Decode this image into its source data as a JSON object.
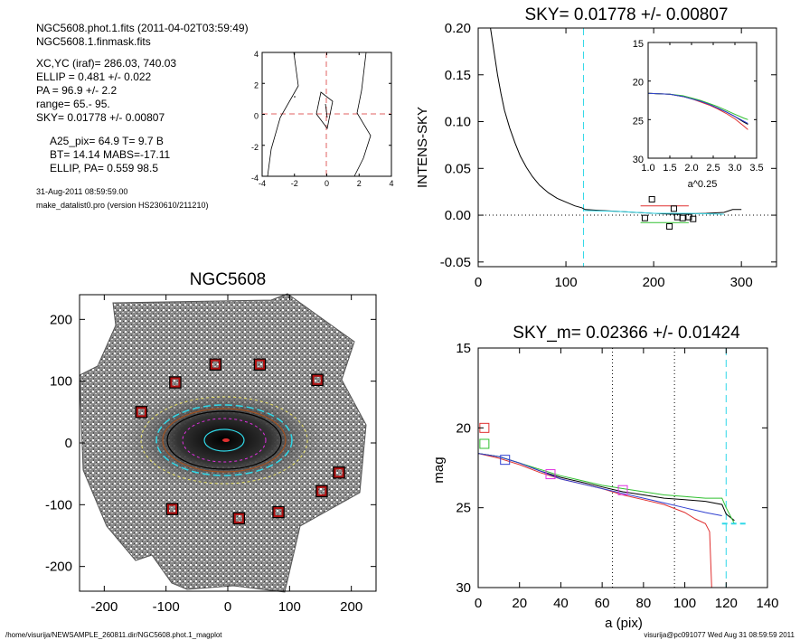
{
  "info": {
    "lines_a": [
      "NGC5608.phot.1.fits  (2011-04-02T03:59:49)",
      "NGC5608.1.finmask.fits"
    ],
    "lines_b": [
      "XC,YC (iraf)=   286.03, 740.03",
      "ELLIP = 0.481 +/- 0.022",
      "PA    =  96.9 +/-   2.2",
      "range=   65.-   95.",
      "SKY= 0.01778 +/- 0.00807"
    ],
    "lines_c": [
      "A25_pix= 64.9   T= 9.7  B",
      "BT=  14.14   MABS=-17.11",
      "ELLIP, PA= 0.559    98.5"
    ],
    "lines_d": [
      "31-Aug-2011 08:59:59.00",
      "make_datalist0.pro (version HS230610/211210)"
    ]
  },
  "footer": {
    "left": "/home/visurija/NEWSAMPLE_260811.dir/NGC5608.phot.1_magplot",
    "right": "visurija@pc091077  Wed Aug 31 08:59:59 2011"
  },
  "colors": {
    "red": "#e03030",
    "green": "#30c030",
    "blue": "#3040d0",
    "cyan": "#30d8e8",
    "magenta": "#e030e0",
    "yellow": "#e8e040",
    "brown": "#a05020"
  },
  "chart_data": [
    {
      "type": "line",
      "panel": "center-inset",
      "title": "",
      "xlabel": "",
      "ylabel": "",
      "xlim": [
        -4,
        4
      ],
      "ylim": [
        -4,
        4
      ],
      "xticks": [
        "-4",
        "-2",
        "0",
        "2",
        "4"
      ],
      "yticks": [
        "4",
        "2",
        "0",
        "-2",
        "-4"
      ],
      "guides": {
        "x": 0,
        "y": 0,
        "color": "red",
        "style": "dashed"
      }
    },
    {
      "type": "image",
      "panel": "galaxy-image",
      "title": "NGC5608",
      "xlim": [
        -240,
        240
      ],
      "ylim": [
        -240,
        240
      ],
      "xticks": [
        "-200",
        "-100",
        "0",
        "100",
        "200"
      ],
      "yticks": [
        "200",
        "100",
        "0",
        "-100",
        "-200"
      ],
      "star_boxes": [
        [
          -140,
          50
        ],
        [
          -85,
          98
        ],
        [
          -20,
          127
        ],
        [
          52,
          127
        ],
        [
          145,
          102
        ],
        [
          180,
          -48
        ],
        [
          152,
          -78
        ],
        [
          82,
          -112
        ],
        [
          18,
          -122
        ],
        [
          -90,
          -107
        ]
      ]
    },
    {
      "type": "line",
      "panel": "sky-profile",
      "title": "SKY= 0.01778 +/- 0.00807",
      "xlabel": "",
      "ylabel": "INTENS-SKY",
      "xlim": [
        0,
        340
      ],
      "ylim": [
        -0.055,
        0.2
      ],
      "xticks": [
        "0",
        "100",
        "200",
        "300"
      ],
      "yticks": [
        "0.20",
        "0.15",
        "0.10",
        "0.05",
        "0.00",
        "-0.05"
      ],
      "vline": 120,
      "series": [
        {
          "color": "black",
          "x": [
            14,
            18,
            22,
            26,
            30,
            36,
            42,
            48,
            55,
            62,
            70,
            80,
            90,
            100,
            110,
            118,
            122,
            140,
            160,
            180,
            200,
            220,
            240,
            260,
            280,
            290,
            300
          ],
          "y": [
            0.2,
            0.175,
            0.15,
            0.13,
            0.112,
            0.093,
            0.077,
            0.063,
            0.051,
            0.041,
            0.032,
            0.024,
            0.018,
            0.014,
            0.01,
            0.008,
            0.006,
            0.005,
            0.004,
            0.003,
            0.002,
            0.001,
            0.0015,
            0.002,
            0.003,
            0.006,
            0.006
          ]
        },
        {
          "color": "cyan",
          "x": [
            120,
            160,
            200,
            240,
            280
          ],
          "y": [
            0.005,
            0.004,
            0.002,
            0.002,
            0.001
          ]
        },
        {
          "color": "green",
          "x": [
            185,
            200,
            220,
            240
          ],
          "y": [
            -0.008,
            -0.008,
            -0.008,
            -0.008
          ]
        },
        {
          "color": "red",
          "x": [
            185,
            200,
            220,
            240
          ],
          "y": [
            0.01,
            0.01,
            0.01,
            0.01
          ]
        }
      ],
      "points": [
        [
          198,
          0.017
        ],
        [
          223,
          0.007
        ],
        [
          218,
          -0.012
        ],
        [
          190,
          -0.003
        ],
        [
          227,
          -0.002
        ],
        [
          233,
          -0.003
        ],
        [
          240,
          -0.002
        ],
        [
          245,
          -0.004
        ]
      ]
    },
    {
      "type": "line",
      "panel": "sky-profile-inset",
      "title": "",
      "xlabel": "a^0.25",
      "ylabel": "",
      "xlim": [
        1.0,
        3.5
      ],
      "ylim": [
        15,
        30
      ],
      "xticks": [
        "1.0",
        "1.5",
        "2.0",
        "2.5",
        "3.0",
        "3.5"
      ],
      "yticks": [
        "15",
        "20",
        "25",
        "30"
      ],
      "series": [
        {
          "color": "black",
          "x": [
            1.0,
            1.5,
            1.8,
            2.0,
            2.2,
            2.4,
            2.6,
            2.8,
            3.0,
            3.2,
            3.3
          ],
          "y": [
            21.6,
            21.7,
            22.0,
            22.3,
            22.6,
            23.0,
            23.5,
            24.0,
            24.6,
            25.3,
            25.6
          ]
        },
        {
          "color": "red",
          "x": [
            1.0,
            1.5,
            1.8,
            2.0,
            2.2,
            2.4,
            2.6,
            2.8,
            3.0,
            3.2,
            3.3
          ],
          "y": [
            21.6,
            21.7,
            22.0,
            22.3,
            22.7,
            23.1,
            23.6,
            24.2,
            24.9,
            25.8,
            26.3
          ]
        },
        {
          "color": "green",
          "x": [
            1.0,
            1.5,
            1.8,
            2.0,
            2.2,
            2.4,
            2.6,
            2.8,
            3.0,
            3.2,
            3.3
          ],
          "y": [
            21.6,
            21.7,
            21.9,
            22.2,
            22.5,
            22.9,
            23.3,
            23.8,
            24.3,
            24.8,
            25.0
          ]
        },
        {
          "color": "blue",
          "x": [
            1.0,
            1.5,
            1.8,
            2.0,
            2.2,
            2.4,
            2.6,
            2.8,
            3.0,
            3.2,
            3.3
          ],
          "y": [
            21.6,
            21.7,
            22.0,
            22.3,
            22.6,
            23.0,
            23.5,
            24.0,
            24.6,
            25.2,
            25.5
          ]
        }
      ]
    },
    {
      "type": "line",
      "panel": "mag-profile",
      "title": "SKY_m=  0.02366 +/- 0.01424",
      "xlabel": "a (pix)",
      "ylabel": "mag",
      "xlim": [
        0,
        140
      ],
      "ylim": [
        15,
        30
      ],
      "xticks": [
        "0",
        "20",
        "40",
        "60",
        "80",
        "100",
        "120",
        "140"
      ],
      "yticks": [
        "15",
        "20",
        "25",
        "30"
      ],
      "vlines_dotted": [
        65,
        95
      ],
      "vline_cyan": 120,
      "series": [
        {
          "color": "black",
          "x": [
            0,
            10,
            20,
            30,
            40,
            50,
            60,
            70,
            80,
            90,
            100,
            110,
            118,
            120,
            124
          ],
          "y": [
            21.6,
            21.8,
            22.2,
            22.7,
            23.1,
            23.4,
            23.7,
            24.0,
            24.2,
            24.4,
            24.5,
            24.6,
            24.8,
            25.4,
            25.8
          ]
        },
        {
          "color": "green",
          "x": [
            0,
            10,
            20,
            30,
            40,
            50,
            60,
            70,
            80,
            90,
            100,
            110,
            118,
            120,
            124
          ],
          "y": [
            21.6,
            21.8,
            22.2,
            22.6,
            23.0,
            23.3,
            23.6,
            23.8,
            24.0,
            24.2,
            24.3,
            24.4,
            24.4,
            25.0,
            26.0
          ]
        },
        {
          "color": "red",
          "x": [
            0,
            10,
            20,
            30,
            40,
            50,
            60,
            70,
            80,
            90,
            100,
            105,
            110,
            112,
            113
          ],
          "y": [
            21.6,
            21.9,
            22.3,
            22.8,
            23.2,
            23.5,
            23.8,
            24.2,
            24.5,
            24.8,
            25.3,
            25.7,
            26.0,
            26.5,
            30.0
          ]
        },
        {
          "color": "blue",
          "x": [
            0,
            10,
            20,
            30,
            40,
            50,
            60,
            70,
            80,
            90,
            100,
            110,
            118
          ],
          "y": [
            21.6,
            21.8,
            22.2,
            22.7,
            23.2,
            23.5,
            23.8,
            24.1,
            24.4,
            24.7,
            25.0,
            25.3,
            25.5
          ]
        },
        {
          "color": "cyan",
          "x": [
            118,
            122,
            126,
            130
          ],
          "y": [
            26.0,
            26.0,
            26.0,
            26.0
          ],
          "dashed": true
        }
      ],
      "points": [
        {
          "x": 3,
          "y": 20.0,
          "color": "red"
        },
        {
          "x": 3,
          "y": 21.0,
          "color": "green"
        },
        {
          "x": 13,
          "y": 22.0,
          "color": "blue"
        },
        {
          "x": 35,
          "y": 22.9,
          "color": "magenta"
        },
        {
          "x": 70,
          "y": 23.9,
          "color": "magenta"
        }
      ]
    }
  ]
}
